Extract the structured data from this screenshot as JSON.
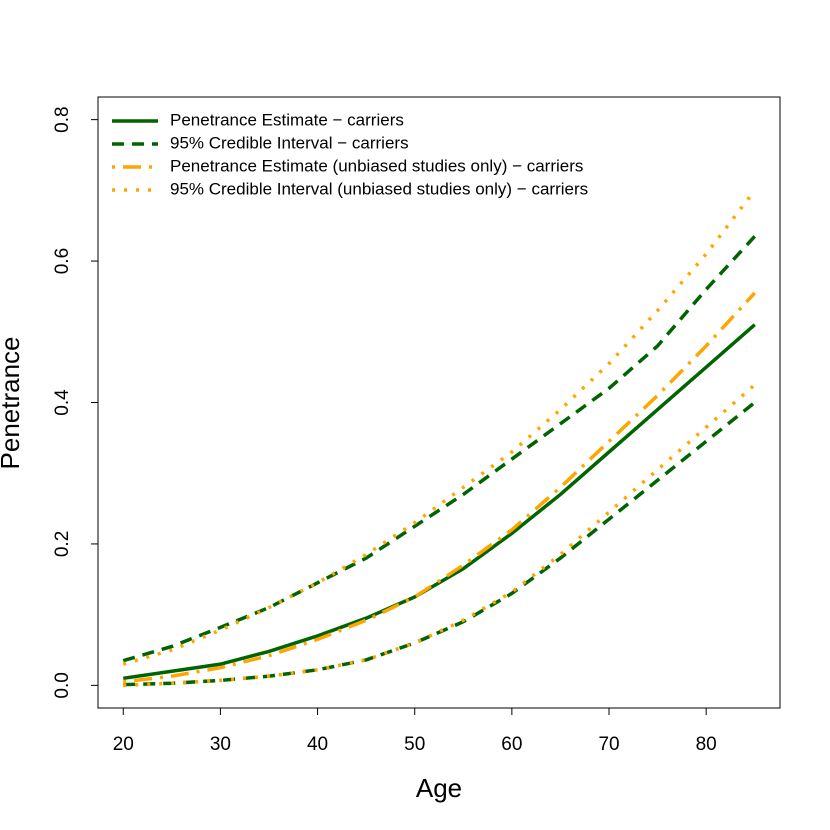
{
  "chart_data": {
    "type": "line",
    "xlabel": "Age",
    "ylabel": "Penetrance",
    "x": [
      20,
      25,
      30,
      35,
      40,
      45,
      50,
      55,
      60,
      65,
      70,
      75,
      80,
      85
    ],
    "series": [
      {
        "name": "Penetrance Estimate − carriers",
        "color": "#006400",
        "linestyle": "solid",
        "values": [
          0.01,
          0.02,
          0.03,
          0.048,
          0.07,
          0.095,
          0.125,
          0.165,
          0.215,
          0.27,
          0.33,
          0.39,
          0.45,
          0.51
        ]
      },
      {
        "name": "95% Credible Interval − carriers",
        "color": "#006400",
        "linestyle": "dashed",
        "lower": [
          0.001,
          0.003,
          0.007,
          0.013,
          0.022,
          0.036,
          0.06,
          0.09,
          0.13,
          0.18,
          0.235,
          0.29,
          0.345,
          0.4
        ],
        "upper": [
          0.035,
          0.055,
          0.082,
          0.11,
          0.145,
          0.18,
          0.225,
          0.27,
          0.32,
          0.37,
          0.42,
          0.48,
          0.56,
          0.635
        ]
      },
      {
        "name": "Penetrance Estimate (unbiased studies only) − carriers",
        "color": "#ffa500",
        "linestyle": "dotdash",
        "values": [
          0.005,
          0.013,
          0.025,
          0.042,
          0.065,
          0.092,
          0.125,
          0.17,
          0.22,
          0.28,
          0.345,
          0.41,
          0.48,
          0.555
        ]
      },
      {
        "name": "95% Credible Interval (unbiased studies only) − carriers",
        "color": "#ffa500",
        "linestyle": "dotted",
        "lower": [
          0.0,
          0.003,
          0.007,
          0.013,
          0.022,
          0.036,
          0.06,
          0.092,
          0.132,
          0.185,
          0.245,
          0.305,
          0.365,
          0.425
        ],
        "upper": [
          0.03,
          0.05,
          0.078,
          0.11,
          0.145,
          0.185,
          0.23,
          0.28,
          0.33,
          0.39,
          0.455,
          0.53,
          0.61,
          0.7
        ]
      }
    ],
    "xlim": [
      17.4,
      87.6
    ],
    "ylim": [
      -0.032,
      0.832
    ],
    "xticks": [
      20,
      30,
      40,
      50,
      60,
      70,
      80
    ],
    "yticks": [
      {
        "value": 0,
        "label": "0.0"
      },
      0.2,
      0.4,
      0.6,
      0.8
    ],
    "grid": false,
    "legend": "topleft"
  }
}
